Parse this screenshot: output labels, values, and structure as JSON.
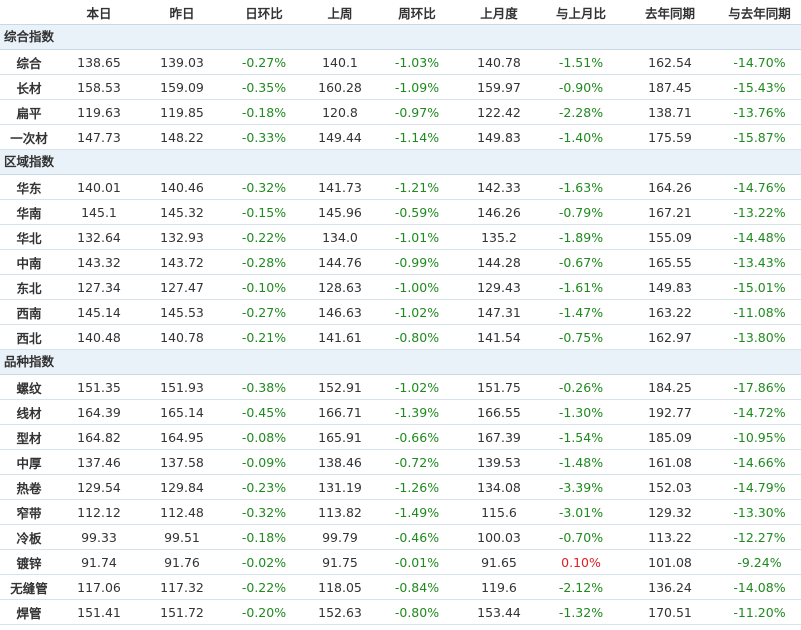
{
  "colors": {
    "negative": "#1e8a1e",
    "positive": "#e02020",
    "section_bg": "#eaf2f9"
  },
  "headers": [
    "",
    "本日",
    "昨日",
    "日环比",
    "上周",
    "周环比",
    "上月度",
    "与上月比",
    "去年同期",
    "与去年同期"
  ],
  "sections": [
    {
      "title": "综合指数",
      "rows": [
        [
          "综合",
          "138.65",
          "139.03",
          "-0.27%",
          "140.1",
          "-1.03%",
          "140.78",
          "-1.51%",
          "162.54",
          "-14.70%"
        ],
        [
          "长材",
          "158.53",
          "159.09",
          "-0.35%",
          "160.28",
          "-1.09%",
          "159.97",
          "-0.90%",
          "187.45",
          "-15.43%"
        ],
        [
          "扁平",
          "119.63",
          "119.85",
          "-0.18%",
          "120.8",
          "-0.97%",
          "122.42",
          "-2.28%",
          "138.71",
          "-13.76%"
        ],
        [
          "一次材",
          "147.73",
          "148.22",
          "-0.33%",
          "149.44",
          "-1.14%",
          "149.83",
          "-1.40%",
          "175.59",
          "-15.87%"
        ]
      ]
    },
    {
      "title": "区域指数",
      "rows": [
        [
          "华东",
          "140.01",
          "140.46",
          "-0.32%",
          "141.73",
          "-1.21%",
          "142.33",
          "-1.63%",
          "164.26",
          "-14.76%"
        ],
        [
          "华南",
          "145.1",
          "145.32",
          "-0.15%",
          "145.96",
          "-0.59%",
          "146.26",
          "-0.79%",
          "167.21",
          "-13.22%"
        ],
        [
          "华北",
          "132.64",
          "132.93",
          "-0.22%",
          "134.0",
          "-1.01%",
          "135.2",
          "-1.89%",
          "155.09",
          "-14.48%"
        ],
        [
          "中南",
          "143.32",
          "143.72",
          "-0.28%",
          "144.76",
          "-0.99%",
          "144.28",
          "-0.67%",
          "165.55",
          "-13.43%"
        ],
        [
          "东北",
          "127.34",
          "127.47",
          "-0.10%",
          "128.63",
          "-1.00%",
          "129.43",
          "-1.61%",
          "149.83",
          "-15.01%"
        ],
        [
          "西南",
          "145.14",
          "145.53",
          "-0.27%",
          "146.63",
          "-1.02%",
          "147.31",
          "-1.47%",
          "163.22",
          "-11.08%"
        ],
        [
          "西北",
          "140.48",
          "140.78",
          "-0.21%",
          "141.61",
          "-0.80%",
          "141.54",
          "-0.75%",
          "162.97",
          "-13.80%"
        ]
      ]
    },
    {
      "title": "品种指数",
      "rows": [
        [
          "螺纹",
          "151.35",
          "151.93",
          "-0.38%",
          "152.91",
          "-1.02%",
          "151.75",
          "-0.26%",
          "184.25",
          "-17.86%"
        ],
        [
          "线材",
          "164.39",
          "165.14",
          "-0.45%",
          "166.71",
          "-1.39%",
          "166.55",
          "-1.30%",
          "192.77",
          "-14.72%"
        ],
        [
          "型材",
          "164.82",
          "164.95",
          "-0.08%",
          "165.91",
          "-0.66%",
          "167.39",
          "-1.54%",
          "185.09",
          "-10.95%"
        ],
        [
          "中厚",
          "137.46",
          "137.58",
          "-0.09%",
          "138.46",
          "-0.72%",
          "139.53",
          "-1.48%",
          "161.08",
          "-14.66%"
        ],
        [
          "热卷",
          "129.54",
          "129.84",
          "-0.23%",
          "131.19",
          "-1.26%",
          "134.08",
          "-3.39%",
          "152.03",
          "-14.79%"
        ],
        [
          "窄带",
          "112.12",
          "112.48",
          "-0.32%",
          "113.82",
          "-1.49%",
          "115.6",
          "-3.01%",
          "129.32",
          "-13.30%"
        ],
        [
          "冷板",
          "99.33",
          "99.51",
          "-0.18%",
          "99.79",
          "-0.46%",
          "100.03",
          "-0.70%",
          "113.22",
          "-12.27%"
        ],
        [
          "镀锌",
          "91.74",
          "91.76",
          "-0.02%",
          "91.75",
          "-0.01%",
          "91.65",
          "0.10%",
          "101.08",
          "-9.24%"
        ],
        [
          "无缝管",
          "117.06",
          "117.32",
          "-0.22%",
          "118.05",
          "-0.84%",
          "119.6",
          "-2.12%",
          "136.24",
          "-14.08%"
        ],
        [
          "焊管",
          "151.41",
          "151.72",
          "-0.20%",
          "152.63",
          "-0.80%",
          "153.44",
          "-1.32%",
          "170.51",
          "-11.20%"
        ]
      ]
    }
  ]
}
